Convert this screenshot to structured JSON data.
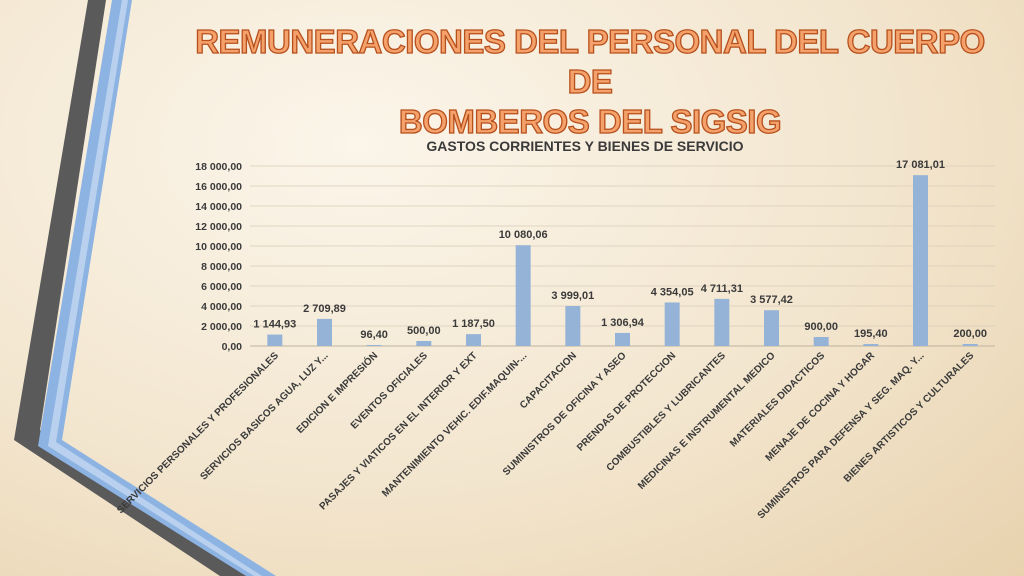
{
  "slide": {
    "title_line1": "REMUNERACIONES DEL PERSONAL DEL CUERPO DE",
    "title_line2": "BOMBEROS DEL SIGSIG"
  },
  "colors": {
    "bar": "#95b3d7",
    "title_fill": "#f4a16b",
    "title_stroke": "#b6501d",
    "deco_dark": "#595959",
    "deco_blue": "#8db3e2"
  },
  "chart_data": {
    "type": "bar",
    "title": "GASTOS CORRIENTES Y BIENES DE SERVICIO",
    "categories": [
      "SERVICIOS PERSONALES Y PROFESIONALES",
      "SERVICIOS BASICOS AGUA, LUZ Y...",
      "EDICION E IMPRESIÓN",
      "EVENTOS OFICIALES",
      "PASAJES Y VIATICOS EN EL INTERIOR Y EXT",
      "MANTENIMIENTO VEHIC. EDIF.MAQUIN-...",
      "CAPACITACION",
      "SUMINISTROS DE OFICINA Y ASEO",
      "PRENDAS DE PROTECCION",
      "COMBUSTIBLES Y LUBRICANTES",
      "MEDICINAS E INSTRUMENTAL MEDICO",
      "MATERIALES DIDACTICOS",
      "MENAJE DE COCINA Y HOGAR",
      "SUMINISTROS PARA DEFENSA Y SEG. MAQ. Y...",
      "BIENES ARTISTICOS Y CULTURALES"
    ],
    "values": [
      1144.93,
      2709.89,
      96.4,
      500.0,
      1187.5,
      10080.06,
      3999.01,
      1306.94,
      4354.05,
      4711.31,
      3577.42,
      900.0,
      195.4,
      17081.01,
      200.0
    ],
    "value_labels": [
      "1 144,93",
      "2 709,89",
      "96,40",
      "500,00",
      "1 187,50",
      "10 080,06",
      "3 999,01",
      "1 306,94",
      "4 354,05",
      "4 711,31",
      "3 577,42",
      "900,00",
      "195,40",
      "17 081,01",
      "200,00"
    ],
    "yticks": [
      0,
      2000,
      4000,
      6000,
      8000,
      10000,
      12000,
      14000,
      16000,
      18000
    ],
    "ytick_labels": [
      "0,00",
      "2 000,00",
      "4 000,00",
      "6 000,00",
      "8 000,00",
      "10 000,00",
      "12 000,00",
      "14 000,00",
      "16 000,00",
      "18 000,00"
    ],
    "ylim": [
      0,
      18000
    ],
    "grid": true,
    "legend": "none"
  }
}
